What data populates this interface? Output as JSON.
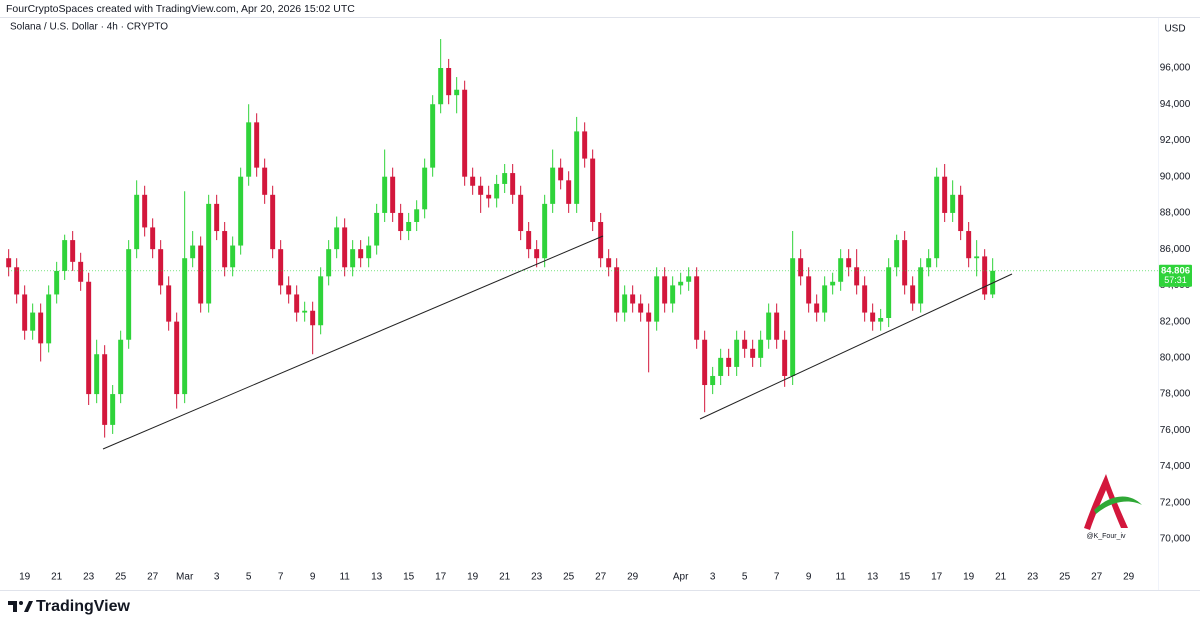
{
  "chart_data": {
    "type": "candlestick",
    "attribution": "FourCryptoSpaces created with TradingView.com, Apr 20, 2026 15:02 UTC",
    "title": "Solana / U.S. Dollar · 4h · CRYPTO",
    "currency": "USD",
    "countdown": "57:31",
    "watermark": "@K_Four_iv",
    "brand": "TradingView",
    "up_color": "#2fd33a",
    "down_color": "#d3173c",
    "x": [
      "2026-02-18T00:00",
      "2026-02-18T12:00",
      "2026-02-19T00:00",
      "2026-02-19T12:00",
      "2026-02-20T00:00",
      "2026-02-20T12:00",
      "2026-02-21T00:00",
      "2026-02-21T12:00",
      "2026-02-22T00:00",
      "2026-02-22T12:00",
      "2026-02-23T00:00",
      "2026-02-23T12:00",
      "2026-02-24T00:00",
      "2026-02-24T12:00",
      "2026-02-25T00:00",
      "2026-02-25T12:00",
      "2026-02-26T00:00",
      "2026-02-26T12:00",
      "2026-02-27T00:00",
      "2026-02-27T12:00",
      "2026-02-28T00:00",
      "2026-02-28T12:00",
      "2026-03-01T00:00",
      "2026-03-01T12:00",
      "2026-03-02T00:00",
      "2026-03-02T12:00",
      "2026-03-03T00:00",
      "2026-03-03T12:00",
      "2026-03-04T00:00",
      "2026-03-04T12:00",
      "2026-03-05T00:00",
      "2026-03-05T12:00",
      "2026-03-06T00:00",
      "2026-03-06T12:00",
      "2026-03-07T00:00",
      "2026-03-07T12:00",
      "2026-03-08T00:00",
      "2026-03-08T12:00",
      "2026-03-09T00:00",
      "2026-03-09T12:00",
      "2026-03-10T00:00",
      "2026-03-10T12:00",
      "2026-03-11T00:00",
      "2026-03-11T12:00",
      "2026-03-12T00:00",
      "2026-03-12T12:00",
      "2026-03-13T00:00",
      "2026-03-13T12:00",
      "2026-03-14T00:00",
      "2026-03-14T12:00",
      "2026-03-15T00:00",
      "2026-03-15T12:00",
      "2026-03-16T00:00",
      "2026-03-16T12:00",
      "2026-03-17T00:00",
      "2026-03-17T12:00",
      "2026-03-18T00:00",
      "2026-03-18T12:00",
      "2026-03-19T00:00",
      "2026-03-19T12:00",
      "2026-03-20T00:00",
      "2026-03-20T12:00",
      "2026-03-21T00:00",
      "2026-03-21T12:00",
      "2026-03-22T00:00",
      "2026-03-22T12:00",
      "2026-03-23T00:00",
      "2026-03-23T12:00",
      "2026-03-24T00:00",
      "2026-03-24T12:00",
      "2026-03-25T00:00",
      "2026-03-25T12:00",
      "2026-03-26T00:00",
      "2026-03-26T12:00",
      "2026-03-27T00:00",
      "2026-03-27T12:00",
      "2026-03-28T00:00",
      "2026-03-28T12:00",
      "2026-03-29T00:00",
      "2026-03-29T12:00",
      "2026-03-30T00:00",
      "2026-03-30T12:00",
      "2026-03-31T00:00",
      "2026-03-31T12:00",
      "2026-04-01T00:00",
      "2026-04-01T12:00",
      "2026-04-02T00:00",
      "2026-04-02T12:00",
      "2026-04-03T00:00",
      "2026-04-03T12:00",
      "2026-04-04T00:00",
      "2026-04-04T12:00",
      "2026-04-05T00:00",
      "2026-04-05T12:00",
      "2026-04-06T00:00",
      "2026-04-06T12:00",
      "2026-04-07T00:00",
      "2026-04-07T12:00",
      "2026-04-08T00:00",
      "2026-04-08T12:00",
      "2026-04-09T00:00",
      "2026-04-09T12:00",
      "2026-04-10T00:00",
      "2026-04-10T12:00",
      "2026-04-11T00:00",
      "2026-04-11T12:00",
      "2026-04-12T00:00",
      "2026-04-12T12:00",
      "2026-04-13T00:00",
      "2026-04-13T12:00",
      "2026-04-14T00:00",
      "2026-04-14T12:00",
      "2026-04-15T00:00",
      "2026-04-15T12:00",
      "2026-04-16T00:00",
      "2026-04-16T12:00",
      "2026-04-17T00:00",
      "2026-04-17T12:00",
      "2026-04-18T00:00",
      "2026-04-18T12:00",
      "2026-04-19T00:00",
      "2026-04-19T12:00",
      "2026-04-20T00:00",
      "2026-04-20T12:00"
    ],
    "open": [
      85.5,
      85.0,
      83.5,
      81.5,
      82.5,
      80.8,
      83.5,
      84.8,
      86.5,
      85.3,
      84.2,
      78.0,
      80.2,
      76.3,
      78.0,
      81.0,
      86.0,
      89.0,
      87.2,
      86.0,
      84.0,
      82.0,
      78.0,
      85.5,
      86.2,
      83.0,
      88.5,
      87.0,
      85.0,
      86.2,
      90.0,
      93.0,
      90.5,
      89.0,
      86.0,
      84.0,
      83.5,
      82.5,
      82.6,
      81.8,
      84.5,
      86.0,
      87.2,
      85.0,
      86.0,
      85.5,
      86.2,
      88.0,
      90.0,
      88.0,
      87.0,
      87.5,
      88.2,
      90.5,
      94.0,
      96.0,
      94.5,
      94.8,
      90.0,
      89.5,
      89.0,
      88.8,
      89.6,
      90.2,
      89.0,
      87.0,
      86.0,
      85.5,
      88.5,
      90.5,
      89.8,
      88.5,
      92.5,
      91.0,
      87.5,
      85.5,
      85.0,
      82.5,
      83.5,
      83.0,
      82.5,
      82.0,
      84.5,
      83.0,
      84.0,
      84.2,
      84.5,
      81.0,
      78.5,
      79.0,
      80.0,
      79.5,
      81.0,
      80.5,
      80.0,
      81.0,
      82.5,
      81.0,
      79.0,
      85.5,
      84.5,
      83.0,
      82.5,
      84.0,
      84.2,
      85.5,
      85.0,
      84.0,
      82.5,
      82.0,
      82.2,
      85.0,
      86.5,
      84.0,
      83.0,
      85.0,
      85.5,
      90.0,
      88.0,
      89.0,
      87.0,
      85.5,
      85.6,
      83.5
    ],
    "high": [
      86.0,
      85.5,
      84.0,
      83.0,
      83.0,
      84.0,
      85.3,
      86.8,
      87.0,
      85.8,
      84.7,
      81.0,
      80.7,
      78.5,
      81.5,
      86.5,
      89.8,
      89.5,
      87.7,
      86.5,
      84.5,
      82.5,
      89.2,
      87.0,
      86.7,
      89.0,
      89.0,
      87.5,
      86.7,
      90.5,
      94.0,
      93.5,
      91.0,
      89.5,
      86.5,
      84.5,
      84.0,
      83.1,
      83.1,
      85.0,
      86.5,
      87.8,
      87.7,
      86.5,
      86.5,
      86.7,
      88.5,
      91.5,
      90.5,
      88.5,
      88.0,
      88.7,
      91.0,
      94.5,
      97.6,
      96.5,
      95.5,
      95.3,
      90.5,
      90.0,
      89.5,
      90.1,
      90.7,
      90.7,
      89.5,
      87.5,
      86.5,
      89.0,
      91.5,
      91.0,
      90.3,
      93.3,
      93.0,
      91.5,
      88.0,
      86.0,
      85.5,
      84.0,
      84.0,
      83.5,
      83.0,
      85.0,
      85.0,
      84.5,
      84.7,
      85.0,
      85.0,
      81.5,
      79.5,
      80.5,
      80.5,
      81.5,
      81.5,
      81.0,
      81.5,
      83.0,
      83.0,
      81.5,
      87.0,
      86.0,
      85.0,
      83.5,
      84.5,
      84.7,
      86.0,
      86.0,
      86.0,
      84.5,
      83.0,
      82.7,
      85.5,
      86.8,
      87.0,
      84.5,
      85.5,
      86.0,
      90.5,
      90.7,
      89.8,
      89.5,
      87.5,
      86.5,
      86.0,
      85.5
    ],
    "low": [
      84.5,
      83.0,
      81.0,
      81.0,
      79.8,
      80.3,
      83.0,
      84.3,
      84.8,
      83.7,
      77.4,
      77.5,
      75.6,
      75.8,
      77.5,
      80.5,
      85.5,
      86.7,
      85.5,
      83.5,
      81.5,
      77.2,
      77.5,
      85.0,
      82.5,
      82.5,
      86.5,
      84.5,
      84.5,
      85.7,
      89.5,
      90.0,
      88.5,
      85.5,
      83.5,
      83.0,
      82.0,
      82.0,
      80.2,
      81.3,
      84.0,
      85.5,
      84.5,
      84.5,
      85.0,
      85.0,
      85.7,
      87.5,
      87.5,
      86.5,
      86.5,
      87.0,
      87.7,
      90.0,
      93.5,
      94.0,
      93.5,
      89.5,
      89.0,
      88.0,
      88.3,
      88.3,
      89.1,
      88.5,
      86.5,
      85.5,
      85.0,
      85.0,
      88.0,
      89.3,
      88.0,
      88.0,
      90.5,
      87.0,
      85.0,
      84.5,
      82.0,
      82.0,
      82.5,
      82.0,
      79.2,
      81.5,
      82.5,
      82.5,
      83.5,
      83.7,
      80.5,
      77.0,
      78.0,
      78.5,
      79.0,
      79.0,
      80.0,
      79.5,
      79.5,
      80.5,
      80.5,
      78.4,
      78.5,
      84.0,
      82.5,
      82.0,
      82.0,
      83.5,
      83.7,
      84.5,
      83.5,
      82.0,
      81.5,
      81.5,
      81.7,
      84.5,
      83.5,
      82.6,
      82.5,
      84.5,
      85.0,
      87.5,
      87.5,
      86.5,
      85.0,
      84.5,
      83.2,
      83.3
    ],
    "close": [
      85.0,
      83.5,
      81.5,
      82.5,
      80.8,
      83.5,
      84.8,
      86.5,
      85.3,
      84.2,
      78.0,
      80.2,
      76.3,
      78.0,
      81.0,
      86.0,
      89.0,
      87.2,
      86.0,
      84.0,
      82.0,
      78.0,
      85.5,
      86.2,
      83.0,
      88.5,
      87.0,
      85.0,
      86.2,
      90.0,
      93.0,
      90.5,
      89.0,
      86.0,
      84.0,
      83.5,
      82.5,
      82.6,
      81.8,
      84.5,
      86.0,
      87.2,
      85.0,
      86.0,
      85.5,
      86.2,
      88.0,
      90.0,
      88.0,
      87.0,
      87.5,
      88.2,
      90.5,
      94.0,
      96.0,
      94.5,
      94.8,
      90.0,
      89.5,
      89.0,
      88.8,
      89.6,
      90.2,
      89.0,
      87.0,
      86.0,
      85.5,
      88.5,
      90.5,
      89.8,
      88.5,
      92.5,
      91.0,
      87.5,
      85.5,
      85.0,
      82.5,
      83.5,
      83.0,
      82.5,
      82.0,
      84.5,
      83.0,
      84.0,
      84.2,
      84.5,
      81.0,
      78.5,
      79.0,
      80.0,
      79.5,
      81.0,
      80.5,
      80.0,
      81.0,
      82.5,
      81.0,
      79.0,
      85.5,
      84.5,
      83.0,
      82.5,
      84.0,
      84.2,
      85.5,
      85.0,
      84.0,
      82.5,
      82.0,
      82.2,
      85.0,
      86.5,
      84.0,
      83.0,
      85.0,
      85.5,
      90.0,
      88.0,
      89.0,
      87.0,
      85.5,
      85.6,
      83.5,
      84.806
    ],
    "xlim": [
      "2026-02-17T23:00",
      "2026-04-30T20:00"
    ],
    "xticks": [
      {
        "value": "2026-02-19T00:00",
        "label": "19"
      },
      {
        "value": "2026-02-21T00:00",
        "label": "21"
      },
      {
        "value": "2026-02-23T00:00",
        "label": "23"
      },
      {
        "value": "2026-02-25T00:00",
        "label": "25"
      },
      {
        "value": "2026-02-27T00:00",
        "label": "27"
      },
      {
        "value": "2026-03-01T00:00",
        "label": "Mar"
      },
      {
        "value": "2026-03-03T00:00",
        "label": "3"
      },
      {
        "value": "2026-03-05T00:00",
        "label": "5"
      },
      {
        "value": "2026-03-07T00:00",
        "label": "7"
      },
      {
        "value": "2026-03-09T00:00",
        "label": "9"
      },
      {
        "value": "2026-03-11T00:00",
        "label": "11"
      },
      {
        "value": "2026-03-13T00:00",
        "label": "13"
      },
      {
        "value": "2026-03-15T00:00",
        "label": "15"
      },
      {
        "value": "2026-03-17T00:00",
        "label": "17"
      },
      {
        "value": "2026-03-19T00:00",
        "label": "19"
      },
      {
        "value": "2026-03-21T00:00",
        "label": "21"
      },
      {
        "value": "2026-03-23T00:00",
        "label": "23"
      },
      {
        "value": "2026-03-25T00:00",
        "label": "25"
      },
      {
        "value": "2026-03-27T00:00",
        "label": "27"
      },
      {
        "value": "2026-03-29T00:00",
        "label": "29"
      },
      {
        "value": "2026-04-01T00:00",
        "label": "Apr"
      },
      {
        "value": "2026-04-03T00:00",
        "label": "3"
      },
      {
        "value": "2026-04-05T00:00",
        "label": "5"
      },
      {
        "value": "2026-04-07T00:00",
        "label": "7"
      },
      {
        "value": "2026-04-09T00:00",
        "label": "9"
      },
      {
        "value": "2026-04-11T00:00",
        "label": "11"
      },
      {
        "value": "2026-04-13T00:00",
        "label": "13"
      },
      {
        "value": "2026-04-15T00:00",
        "label": "15"
      },
      {
        "value": "2026-04-17T00:00",
        "label": "17"
      },
      {
        "value": "2026-04-19T00:00",
        "label": "19"
      },
      {
        "value": "2026-04-21T00:00",
        "label": "21"
      },
      {
        "value": "2026-04-23T00:00",
        "label": "23"
      },
      {
        "value": "2026-04-25T00:00",
        "label": "25"
      },
      {
        "value": "2026-04-27T00:00",
        "label": "27"
      },
      {
        "value": "2026-04-29T00:00",
        "label": "29"
      }
    ],
    "ylim": [
      68.4,
      98.76
    ],
    "yticks": [
      {
        "value": 70,
        "label": "70,000"
      },
      {
        "value": 72,
        "label": "72,000"
      },
      {
        "value": 74,
        "label": "74,000"
      },
      {
        "value": 76,
        "label": "76,000"
      },
      {
        "value": 78,
        "label": "78,000"
      },
      {
        "value": 80,
        "label": "80,000"
      },
      {
        "value": 82,
        "label": "82,000"
      },
      {
        "value": 84,
        "label": "84,000"
      },
      {
        "value": 86,
        "label": "86,000"
      },
      {
        "value": 88,
        "label": "88,000"
      },
      {
        "value": 90,
        "label": "90,000"
      },
      {
        "value": 92,
        "label": "92,000"
      },
      {
        "value": 94,
        "label": "94,000"
      },
      {
        "value": 96,
        "label": "96,000"
      }
    ]
  }
}
